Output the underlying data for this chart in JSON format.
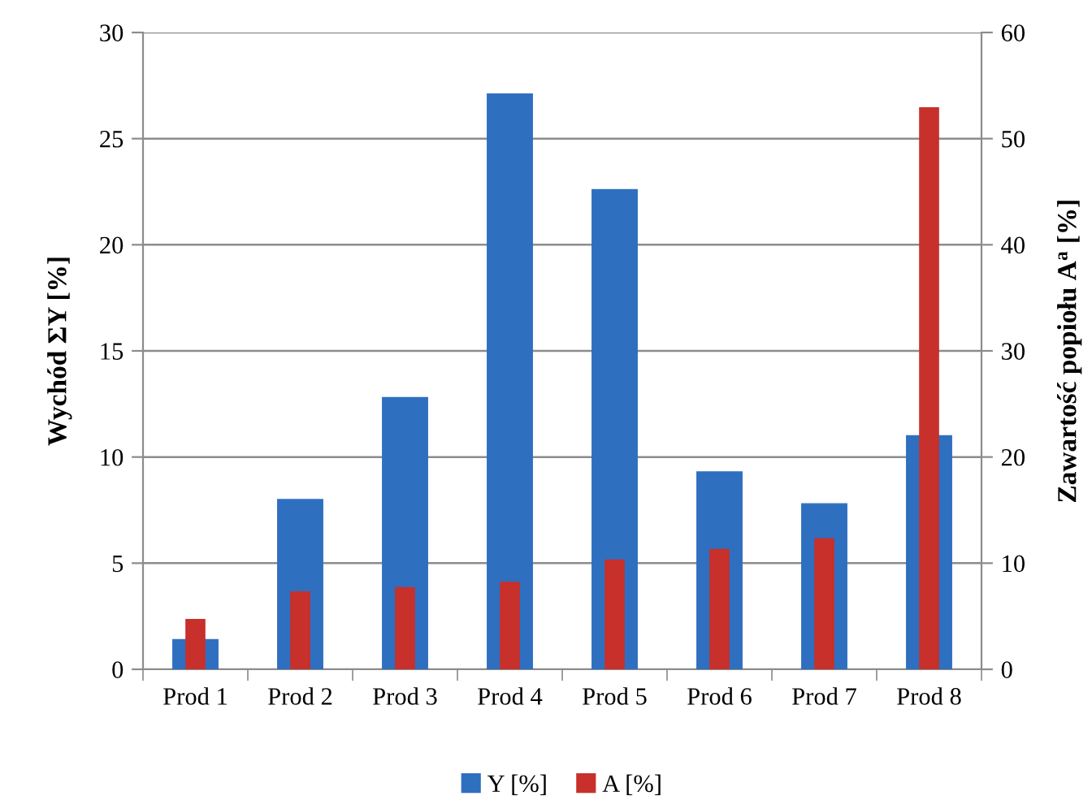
{
  "chart_data": {
    "type": "bar",
    "categories": [
      "Prod 1",
      "Prod 2",
      "Prod 3",
      "Prod 4",
      "Prod 5",
      "Prod 6",
      "Prod 7",
      "Prod 8"
    ],
    "ylabel": "Wychód ΣY [%]",
    "y2label": "Zawartość popiołu A$^{a}$ [%]",
    "ylim": [
      0,
      30
    ],
    "yticks": [
      0,
      5,
      10,
      15,
      20,
      25,
      30
    ],
    "y2lim": [
      0,
      60
    ],
    "y2ticks": [
      0,
      10,
      20,
      30,
      40,
      50,
      60
    ],
    "grid": "y",
    "legend": "bottom",
    "series": [
      {
        "name": "Y [%]",
        "color": "#2f6fc0",
        "values": [
          1.4,
          8.0,
          12.8,
          27.1,
          22.6,
          9.3,
          7.8,
          11.0
        ]
      },
      {
        "name": "A [%]",
        "color": "#c8302c",
        "axis": "y2",
        "values": [
          4.7,
          7.3,
          7.7,
          8.2,
          10.3,
          11.3,
          12.3,
          52.9
        ]
      }
    ]
  }
}
